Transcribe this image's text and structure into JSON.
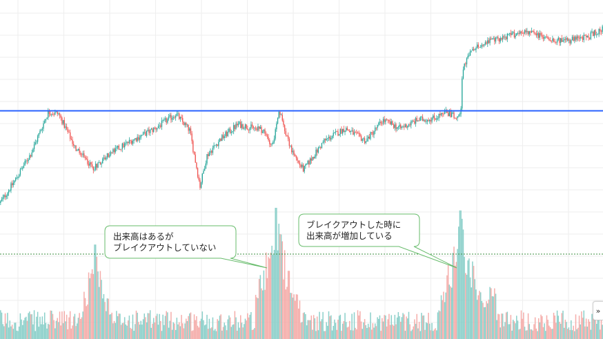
{
  "chart_data": {
    "type": "candlestick",
    "title": "",
    "xlabel": "",
    "ylabel": "",
    "grid": true,
    "bar_count": 520,
    "price_ylim": [
      0,
      100
    ],
    "volume_ylim": [
      0,
      100
    ],
    "resistance_level": 56.5,
    "volume_reference_level": 38,
    "price_path": [
      [
        0,
        12
      ],
      [
        20,
        22
      ],
      [
        45,
        36
      ],
      [
        70,
        56
      ],
      [
        85,
        55
      ],
      [
        110,
        38
      ],
      [
        135,
        29
      ],
      [
        160,
        36
      ],
      [
        190,
        42
      ],
      [
        225,
        48
      ],
      [
        255,
        55
      ],
      [
        275,
        47
      ],
      [
        290,
        20
      ],
      [
        300,
        35
      ],
      [
        320,
        43
      ],
      [
        345,
        50
      ],
      [
        380,
        47
      ],
      [
        395,
        40
      ],
      [
        405,
        56
      ],
      [
        425,
        35
      ],
      [
        440,
        28
      ],
      [
        470,
        42
      ],
      [
        500,
        48
      ],
      [
        530,
        42
      ],
      [
        555,
        52
      ],
      [
        580,
        48
      ],
      [
        605,
        52
      ],
      [
        630,
        53
      ],
      [
        645,
        56
      ],
      [
        660,
        54
      ],
      [
        668,
        57
      ],
      [
        670,
        75
      ],
      [
        680,
        84
      ],
      [
        700,
        89
      ],
      [
        730,
        92
      ],
      [
        760,
        95
      ],
      [
        790,
        92
      ],
      [
        820,
        90
      ],
      [
        850,
        92
      ],
      [
        874,
        96
      ]
    ],
    "volume_spikes": [
      {
        "at": 138,
        "value": 72
      },
      {
        "at": 400,
        "value": 100
      },
      {
        "at": 668,
        "value": 98
      }
    ],
    "colors": {
      "up": "#26a69a",
      "down": "#ef5350",
      "volume_up": "#80cbc4",
      "volume_down": "#f4a4a1",
      "resistance_line": "#2962ff",
      "volume_line": "#388e3c",
      "grid": "#eeeeee",
      "callout_border": "#66bb6a",
      "callout_fill": "#ffffff"
    },
    "annotations": [
      {
        "id": "no-breakout",
        "lines": [
          "出来高はあるが",
          "ブレイクアウトしていない"
        ]
      },
      {
        "id": "breakout",
        "lines": [
          "ブレイクアウトした時に",
          "出来高が増加している"
        ]
      }
    ]
  },
  "ui": {
    "scroll_icon": "double-chevron-right-icon",
    "scroll_glyph": "»"
  }
}
